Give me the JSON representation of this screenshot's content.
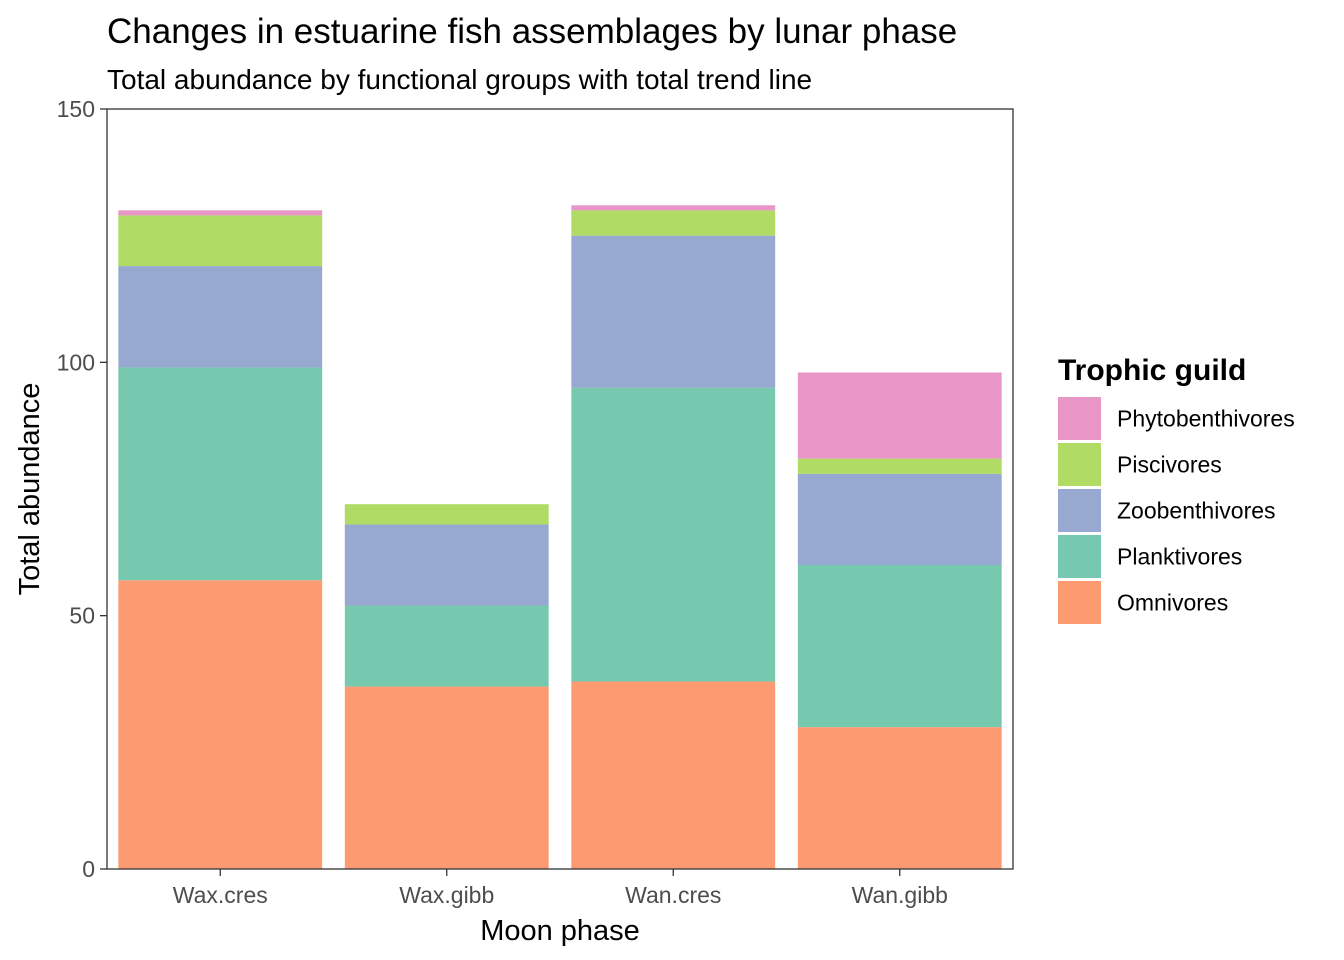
{
  "chart_data": {
    "type": "bar",
    "stacked": true,
    "title": "Changes in estuarine fish assemblages by lunar phase",
    "subtitle": "Total abundance by functional groups with total trend line",
    "xlabel": "Moon phase",
    "ylabel": "Total abundance",
    "ylim": [
      0,
      150
    ],
    "yticks": [
      0,
      50,
      100,
      150
    ],
    "grid": false,
    "categories": [
      "Wax.cres",
      "Wax.gibb",
      "Wan.cres",
      "Wan.gibb"
    ],
    "series": [
      {
        "name": "Omnivores",
        "color": "#FC9A72",
        "values": [
          57,
          36,
          37,
          28
        ]
      },
      {
        "name": "Planktivores",
        "color": "#76C8AE",
        "values": [
          42,
          16,
          58,
          32
        ]
      },
      {
        "name": "Zoobenthivores",
        "color": "#97A9D0",
        "values": [
          20,
          16,
          30,
          18
        ]
      },
      {
        "name": "Piscivores",
        "color": "#B0DB65",
        "values": [
          10,
          4,
          5,
          3
        ]
      },
      {
        "name": "Phytobenthivores",
        "color": "#E896C8",
        "values": [
          1,
          0,
          1,
          17
        ]
      }
    ],
    "legend": {
      "title": "Trophic guild",
      "position": "right",
      "order": [
        "Phytobenthivores",
        "Piscivores",
        "Zoobenthivores",
        "Planktivores",
        "Omnivores"
      ]
    }
  }
}
